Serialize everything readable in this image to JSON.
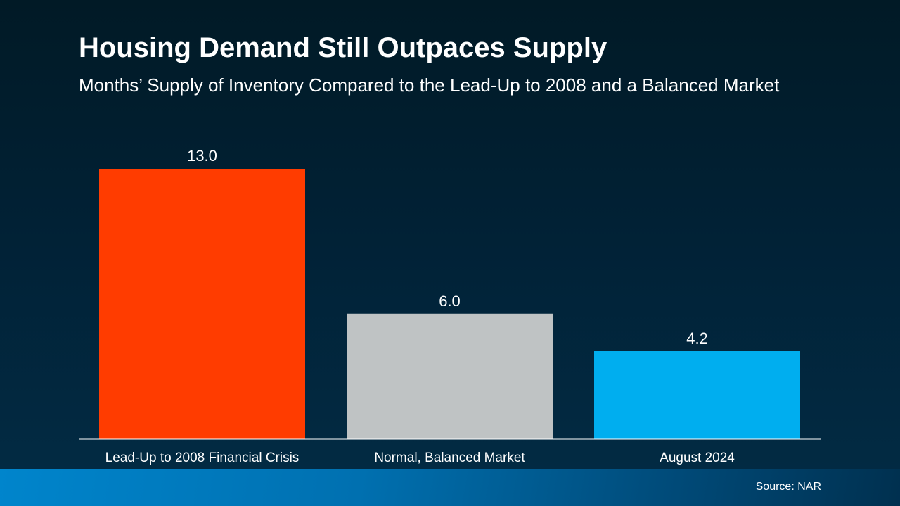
{
  "chart_data": {
    "type": "bar",
    "title": "Housing Demand Still Outpaces Supply",
    "subtitle": "Months’ Supply of Inventory Compared to the Lead-Up to 2008 and a Balanced Market",
    "categories": [
      "Lead-Up to 2008 Financial Crisis",
      "Normal, Balanced Market",
      "August 2024"
    ],
    "values": [
      13.0,
      6.0,
      4.2
    ],
    "data_labels": [
      "13.0",
      "6.0",
      "4.2"
    ],
    "colors": [
      "#ff3c00",
      "#bfc3c4",
      "#00aeef"
    ],
    "xlabel": "",
    "ylabel": "",
    "ylim": [
      0,
      13
    ],
    "grid": false,
    "legend": "none"
  },
  "footer": {
    "source": "Source: NAR"
  }
}
